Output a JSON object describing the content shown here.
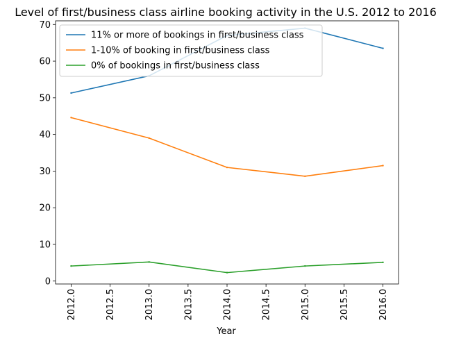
{
  "chart_data": {
    "type": "line",
    "title": "Level of first/business class airline booking activity in the U.S. 2012 to 2016",
    "xlabel": "Year",
    "ylabel": "",
    "x": [
      2012,
      2013,
      2014,
      2015,
      2016
    ],
    "xlim": [
      2011.8,
      2016.2
    ],
    "ylim": [
      -0.8,
      71
    ],
    "xticks": [
      "2012.0",
      "2012.5",
      "2013.0",
      "2013.5",
      "2014.0",
      "2014.5",
      "2015.0",
      "2015.5",
      "2016.0"
    ],
    "yticks": [
      "0",
      "10",
      "20",
      "30",
      "40",
      "50",
      "60",
      "70"
    ],
    "grid": false,
    "legend_position": "top-left",
    "series": [
      {
        "name": "11% or more of bookings in first/business class",
        "color": "#1f77b4",
        "values": [
          51.3,
          56.0,
          67.0,
          69.0,
          63.5
        ]
      },
      {
        "name": "1-10% of booking in first/business class",
        "color": "#ff7f0e",
        "values": [
          44.6,
          39.0,
          31.0,
          28.6,
          31.5
        ]
      },
      {
        "name": "0% of bookings in first/business class",
        "color": "#2ca02c",
        "values": [
          4.1,
          5.2,
          2.3,
          4.1,
          5.1
        ]
      }
    ]
  }
}
